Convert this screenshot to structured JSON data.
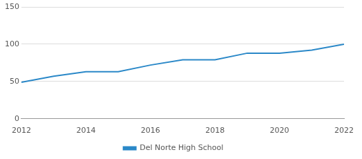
{
  "chart_data": {
    "type": "line",
    "x": [
      2012,
      2013,
      2014,
      2015,
      2016,
      2017,
      2018,
      2019,
      2020,
      2021,
      2022
    ],
    "series": [
      {
        "name": "Del Norte High School",
        "color": "#2a88c8",
        "values": [
          49,
          57,
          63,
          63,
          72,
          79,
          79,
          88,
          88,
          92,
          100
        ]
      }
    ],
    "xlim": [
      2012,
      2022
    ],
    "xticks": [
      2012,
      2014,
      2016,
      2018,
      2020,
      2022
    ],
    "ylim": [
      0,
      150
    ],
    "yticks": [
      0,
      50,
      100,
      150
    ],
    "grid": true,
    "legend": "bottom"
  }
}
